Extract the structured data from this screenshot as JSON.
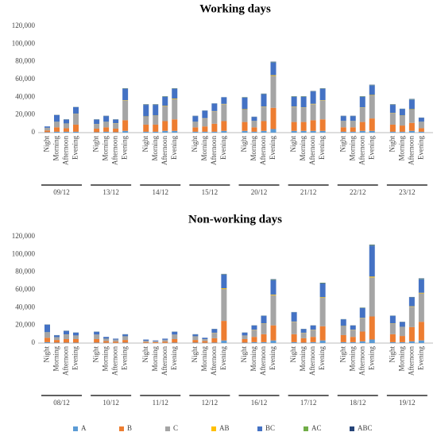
{
  "chart_data": [
    {
      "type": "bar",
      "stacked": true,
      "title": "Working days",
      "periods": [
        "Night",
        "Morning",
        "Afternoon",
        "Evening"
      ],
      "groups": [
        "09/12",
        "13/12",
        "14/12",
        "15/12",
        "20/12",
        "21/12",
        "22/12",
        "23/12"
      ],
      "ylim": [
        0,
        120000
      ],
      "yticks": [
        0,
        {
          "value": 20000,
          "label": "20,000"
        },
        {
          "value": 40000,
          "label": "40,000"
        },
        {
          "value": 60000,
          "label": "60,000"
        },
        {
          "value": 80000,
          "label": "80,000"
        },
        {
          "value": 100000,
          "label": "100,000"
        },
        {
          "value": 120000,
          "label": "120,000"
        }
      ],
      "grid": false,
      "series": [
        {
          "name": "A",
          "color": "#5b9bd5",
          "values": [
            500,
            1000,
            1000,
            1000,
            500,
            1000,
            500,
            2000,
            1000,
            1000,
            2000,
            2000,
            1000,
            1000,
            1000,
            2000,
            2000,
            1000,
            2000,
            4000,
            2000,
            2000,
            2000,
            2000,
            1000,
            1000,
            2000,
            2000,
            1000,
            1000,
            2000,
            1000
          ]
        },
        {
          "name": "B",
          "color": "#ed7d31",
          "values": [
            2000,
            5000,
            4000,
            8000,
            4000,
            5000,
            4000,
            12000,
            8000,
            8000,
            11000,
            13000,
            5000,
            6000,
            9000,
            11000,
            10000,
            5000,
            11000,
            24000,
            10000,
            10000,
            12000,
            13000,
            5000,
            5000,
            10000,
            14000,
            8000,
            7000,
            9000,
            4000
          ]
        },
        {
          "name": "C",
          "color": "#a5a5a5",
          "values": [
            3000,
            6000,
            5000,
            12000,
            5000,
            6000,
            6000,
            22000,
            9000,
            10000,
            17000,
            23000,
            6000,
            9000,
            14000,
            19000,
            14000,
            7000,
            16000,
            36000,
            17000,
            16000,
            18000,
            21000,
            7000,
            7000,
            16000,
            26000,
            13000,
            11000,
            15000,
            7000
          ]
        },
        {
          "name": "AB",
          "color": "#ffc000",
          "values": [
            0,
            200,
            200,
            300,
            200,
            200,
            200,
            500,
            300,
            300,
            400,
            500,
            200,
            300,
            300,
            400,
            400,
            200,
            400,
            800,
            400,
            400,
            500,
            500,
            200,
            200,
            400,
            500,
            300,
            300,
            400,
            200
          ]
        },
        {
          "name": "BC",
          "color": "#4472c4",
          "values": [
            1500,
            7500,
            4500,
            7500,
            5000,
            6500,
            4000,
            13000,
            13000,
            12000,
            10000,
            11000,
            6500,
            8500,
            8500,
            7500,
            13000,
            4500,
            14000,
            14500,
            11000,
            12000,
            14000,
            13000,
            5500,
            5500,
            12000,
            11000,
            9000,
            7500,
            11000,
            4500
          ]
        },
        {
          "name": "AC",
          "color": "#70ad47",
          "values": [
            0,
            100,
            100,
            100,
            100,
            100,
            100,
            200,
            300,
            300,
            300,
            200,
            100,
            100,
            100,
            50,
            300,
            100,
            300,
            300,
            300,
            300,
            200,
            200,
            100,
            100,
            300,
            200,
            300,
            100,
            300,
            100
          ]
        },
        {
          "name": "ABC",
          "color": "#264478",
          "values": [
            0,
            200,
            200,
            100,
            200,
            200,
            200,
            300,
            400,
            400,
            300,
            300,
            200,
            100,
            100,
            50,
            300,
            200,
            300,
            400,
            300,
            300,
            300,
            300,
            200,
            200,
            300,
            300,
            400,
            100,
            300,
            200
          ]
        }
      ]
    },
    {
      "type": "bar",
      "stacked": true,
      "title": "Non-working days",
      "periods": [
        "Night",
        "Morning",
        "Afternoon",
        "Evening"
      ],
      "groups": [
        "08/12",
        "10/12",
        "11/12",
        "12/12",
        "16/12",
        "17/12",
        "18/12",
        "19/12"
      ],
      "ylim": [
        0,
        120000
      ],
      "yticks": [
        0,
        {
          "value": 20000,
          "label": "20,000"
        },
        {
          "value": 40000,
          "label": "40,000"
        },
        {
          "value": 60000,
          "label": "60,000"
        },
        {
          "value": 80000,
          "label": "80,000"
        },
        {
          "value": 100000,
          "label": "100,000"
        },
        {
          "value": 120000,
          "label": "120,000"
        }
      ],
      "grid": false,
      "legend": "bottom",
      "series": [
        {
          "name": "A",
          "color": "#5b9bd5",
          "values": [
            1000,
            500,
            500,
            500,
            500,
            300,
            200,
            500,
            200,
            100,
            200,
            500,
            500,
            300,
            500,
            3000,
            500,
            1000,
            1000,
            3000,
            1000,
            500,
            1000,
            3000,
            1000,
            1000,
            2000,
            4000,
            1000,
            1000,
            2000,
            3000
          ]
        },
        {
          "name": "B",
          "color": "#ed7d31",
          "values": [
            5000,
            3000,
            4000,
            4000,
            4000,
            2000,
            1500,
            3000,
            1000,
            1000,
            1500,
            4000,
            3000,
            2000,
            5000,
            22000,
            4000,
            6000,
            9000,
            17000,
            9000,
            5000,
            6000,
            16000,
            8000,
            6000,
            11000,
            26000,
            9000,
            7000,
            16000,
            21000
          ]
        },
        {
          "name": "C",
          "color": "#a5a5a5",
          "values": [
            6000,
            3000,
            5000,
            4000,
            5000,
            2500,
            2000,
            4000,
            1500,
            1000,
            2000,
            5000,
            4000,
            2000,
            6000,
            36000,
            4000,
            8000,
            12000,
            34000,
            14000,
            6000,
            8000,
            32000,
            10000,
            8000,
            15000,
            44000,
            12000,
            10000,
            23000,
            32000
          ]
        },
        {
          "name": "AB",
          "color": "#ffc000",
          "values": [
            200,
            100,
            200,
            100,
            100,
            100,
            100,
            100,
            0,
            0,
            0,
            100,
            100,
            100,
            200,
            800,
            100,
            200,
            300,
            700,
            300,
            200,
            200,
            700,
            300,
            200,
            400,
            1000,
            300,
            200,
            500,
            700
          ]
        },
        {
          "name": "BC",
          "color": "#4472c4",
          "values": [
            8500,
            2200,
            4000,
            3200,
            3200,
            2000,
            1100,
            2200,
            1200,
            800,
            1200,
            3200,
            2200,
            1500,
            4000,
            15500,
            3200,
            4500,
            8500,
            16500,
            10500,
            4000,
            4500,
            15500,
            7500,
            4500,
            11000,
            35000,
            8500,
            5500,
            10000,
            15500
          ]
        },
        {
          "name": "AC",
          "color": "#70ad47",
          "values": [
            100,
            100,
            100,
            100,
            100,
            0,
            0,
            100,
            0,
            0,
            0,
            100,
            100,
            0,
            100,
            300,
            100,
            100,
            100,
            400,
            100,
            100,
            100,
            400,
            100,
            100,
            300,
            500,
            100,
            100,
            200,
            400
          ]
        },
        {
          "name": "ABC",
          "color": "#264478",
          "values": [
            200,
            100,
            200,
            100,
            100,
            100,
            100,
            100,
            100,
            100,
            100,
            100,
            100,
            100,
            200,
            400,
            100,
            200,
            100,
            400,
            100,
            200,
            200,
            400,
            100,
            200,
            300,
            500,
            100,
            200,
            300,
            400
          ]
        }
      ]
    }
  ]
}
